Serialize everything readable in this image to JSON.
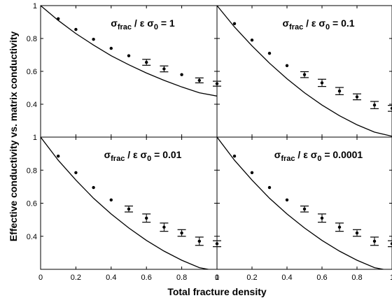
{
  "figure": {
    "xlabel": "Total fracture density",
    "ylabel": "Effective conductivity vs. matrix conductivity"
  },
  "chart_data": [
    {
      "type": "scatter",
      "title": "σfrac / ε σ0 = 1",
      "title_parts": {
        "sym": "σ",
        "sub1": "frac",
        "mid": " / ε σ",
        "sub2": "0",
        "end": " = 1"
      },
      "xlim": [
        0,
        1
      ],
      "ylim": [
        0.2,
        1
      ],
      "xticks": [
        "0",
        "0.2",
        "0.4",
        "0.6",
        "0.8",
        "1"
      ],
      "yticks": [
        "0.4",
        "0.6",
        "0.8",
        "1"
      ],
      "grid": false,
      "series": [
        {
          "kind": "points",
          "x": [
            0.1,
            0.2,
            0.3,
            0.4,
            0.5,
            0.6,
            0.7,
            0.8,
            0.9,
            1.0
          ],
          "y": [
            0.92,
            0.855,
            0.795,
            0.74,
            0.695,
            0.655,
            0.615,
            0.58,
            0.545,
            0.525
          ],
          "err": [
            0,
            0,
            0,
            0,
            0,
            0.018,
            0.018,
            0,
            0.015,
            0.015
          ]
        },
        {
          "kind": "line",
          "x": [
            0,
            0.1,
            0.2,
            0.3,
            0.4,
            0.5,
            0.6,
            0.7,
            0.8,
            0.9,
            1.0
          ],
          "y": [
            1.0,
            0.91,
            0.83,
            0.76,
            0.695,
            0.64,
            0.59,
            0.545,
            0.505,
            0.47,
            0.45
          ]
        }
      ]
    },
    {
      "type": "scatter",
      "title": "σfrac / ε σ0 = 0.1",
      "title_parts": {
        "sym": "σ",
        "sub1": "frac",
        "mid": " / ε σ",
        "sub2": "0",
        "end": " = 0.1"
      },
      "xlim": [
        0,
        1
      ],
      "ylim": [
        0.2,
        1
      ],
      "xticks": [
        "0",
        "0.2",
        "0.4",
        "0.6",
        "0.8",
        "1"
      ],
      "yticks": [
        "0.4",
        "0.6",
        "0.8",
        "1"
      ],
      "grid": false,
      "series": [
        {
          "kind": "points",
          "x": [
            0.1,
            0.2,
            0.3,
            0.4,
            0.5,
            0.6,
            0.7,
            0.8,
            0.9,
            1.0
          ],
          "y": [
            0.89,
            0.79,
            0.71,
            0.635,
            0.58,
            0.53,
            0.48,
            0.445,
            0.395,
            0.375
          ],
          "err": [
            0,
            0,
            0,
            0,
            0.018,
            0.022,
            0.022,
            0.018,
            0.022,
            0.018
          ]
        },
        {
          "kind": "line",
          "x": [
            0,
            0.1,
            0.2,
            0.3,
            0.4,
            0.5,
            0.6,
            0.7,
            0.8,
            0.9,
            1.0
          ],
          "y": [
            1.0,
            0.87,
            0.755,
            0.65,
            0.555,
            0.47,
            0.395,
            0.33,
            0.275,
            0.23,
            0.205
          ]
        }
      ]
    },
    {
      "type": "scatter",
      "title": "σfrac / ε σ0 = 0.01",
      "title_parts": {
        "sym": "σ",
        "sub1": "frac",
        "mid": " / ε σ",
        "sub2": "0",
        "end": " = 0.01"
      },
      "xlim": [
        0,
        1
      ],
      "ylim": [
        0.2,
        1
      ],
      "xticks": [
        "0",
        "0.2",
        "0.4",
        "0.6",
        "0.8",
        "1"
      ],
      "yticks": [
        "0.4",
        "0.6",
        "0.8",
        "1"
      ],
      "grid": false,
      "series": [
        {
          "kind": "points",
          "x": [
            0.1,
            0.2,
            0.3,
            0.4,
            0.5,
            0.6,
            0.7,
            0.8,
            0.9,
            1.0
          ],
          "y": [
            0.885,
            0.785,
            0.695,
            0.62,
            0.565,
            0.51,
            0.455,
            0.42,
            0.37,
            0.355
          ],
          "err": [
            0,
            0,
            0,
            0,
            0.018,
            0.025,
            0.025,
            0.02,
            0.025,
            0.018
          ]
        },
        {
          "kind": "line",
          "x": [
            0,
            0.1,
            0.2,
            0.3,
            0.4,
            0.5,
            0.6,
            0.7,
            0.8,
            0.9,
            1.0
          ],
          "y": [
            1.0,
            0.86,
            0.74,
            0.63,
            0.535,
            0.45,
            0.375,
            0.31,
            0.255,
            0.21,
            0.19
          ]
        }
      ]
    },
    {
      "type": "scatter",
      "title": "σfrac / ε σ0 = 0.0001",
      "title_parts": {
        "sym": "σ",
        "sub1": "frac",
        "mid": " / ε σ",
        "sub2": "0",
        "end": " = 0.0001"
      },
      "xlim": [
        0,
        1
      ],
      "ylim": [
        0.2,
        1
      ],
      "xticks": [
        "0",
        "0.2",
        "0.4",
        "0.6",
        "0.8",
        "1"
      ],
      "yticks": [
        "0.4",
        "0.6",
        "0.8",
        "1"
      ],
      "grid": false,
      "series": [
        {
          "kind": "points",
          "x": [
            0.1,
            0.2,
            0.3,
            0.4,
            0.5,
            0.6,
            0.7,
            0.8,
            0.9,
            1.0
          ],
          "y": [
            0.885,
            0.785,
            0.695,
            0.62,
            0.565,
            0.51,
            0.455,
            0.42,
            0.37,
            0.355
          ],
          "err": [
            0,
            0,
            0,
            0,
            0.018,
            0.025,
            0.025,
            0.02,
            0.025,
            0.018
          ]
        },
        {
          "kind": "line",
          "x": [
            0,
            0.1,
            0.2,
            0.3,
            0.4,
            0.5,
            0.6,
            0.7,
            0.8,
            0.9,
            1.0
          ],
          "y": [
            1.0,
            0.86,
            0.74,
            0.63,
            0.535,
            0.45,
            0.375,
            0.31,
            0.255,
            0.21,
            0.19
          ]
        }
      ]
    }
  ]
}
